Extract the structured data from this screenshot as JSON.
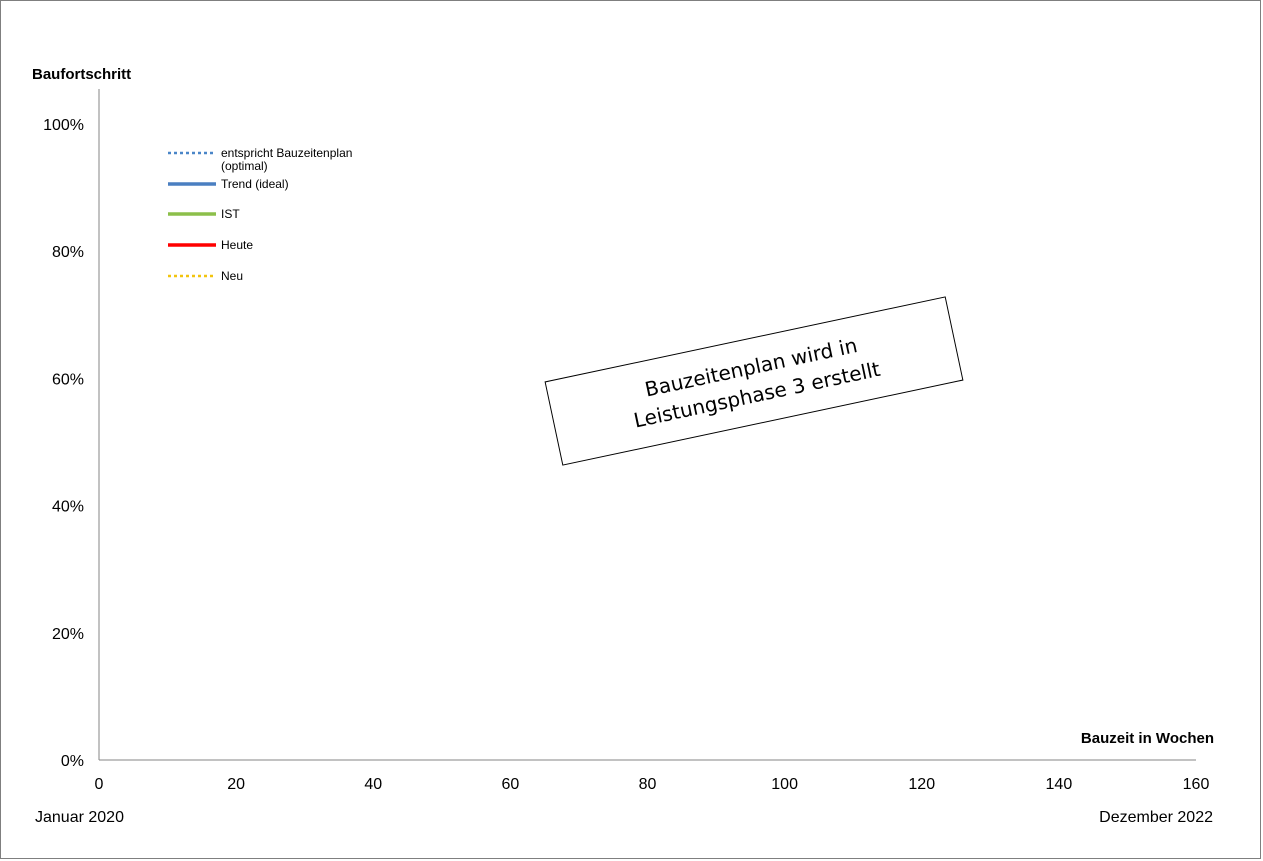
{
  "chart_data": {
    "type": "line",
    "title": "",
    "ylabel": "Baufortschritt",
    "xlabel": "Bauzeit in Wochen",
    "xlim": [
      0,
      160
    ],
    "ylim": [
      0,
      100
    ],
    "x_ticks": [
      0,
      20,
      40,
      60,
      80,
      100,
      120,
      140,
      160
    ],
    "x_tick_labels": [
      "0",
      "20",
      "40",
      "60",
      "80",
      "100",
      "120",
      "140",
      "160"
    ],
    "y_ticks": [
      0,
      20,
      40,
      60,
      80,
      100
    ],
    "y_tick_labels": [
      "0%",
      "20%",
      "40%",
      "60%",
      "80%",
      "100%"
    ],
    "grid": false,
    "legend_position": "top-left",
    "series": [
      {
        "name": "entspricht Bauzeitenplan\n(optimal)",
        "color": "#4a86c8",
        "style": "dotted",
        "values": []
      },
      {
        "name": "Trend (ideal)",
        "color": "#4a7fc1",
        "style": "solid",
        "values": []
      },
      {
        "name": "IST",
        "color": "#8cbf4a",
        "style": "solid",
        "values": []
      },
      {
        "name": "Heute",
        "color": "#ff0000",
        "style": "solid",
        "values": []
      },
      {
        "name": "Neu",
        "color": "#f2c40f",
        "style": "dotted",
        "values": []
      }
    ],
    "period_start": "Januar 2020",
    "period_end": "Dezember 2022",
    "annotation": "Bauzeitenplan wird in\nLeistungsphase 3 erstellt"
  }
}
